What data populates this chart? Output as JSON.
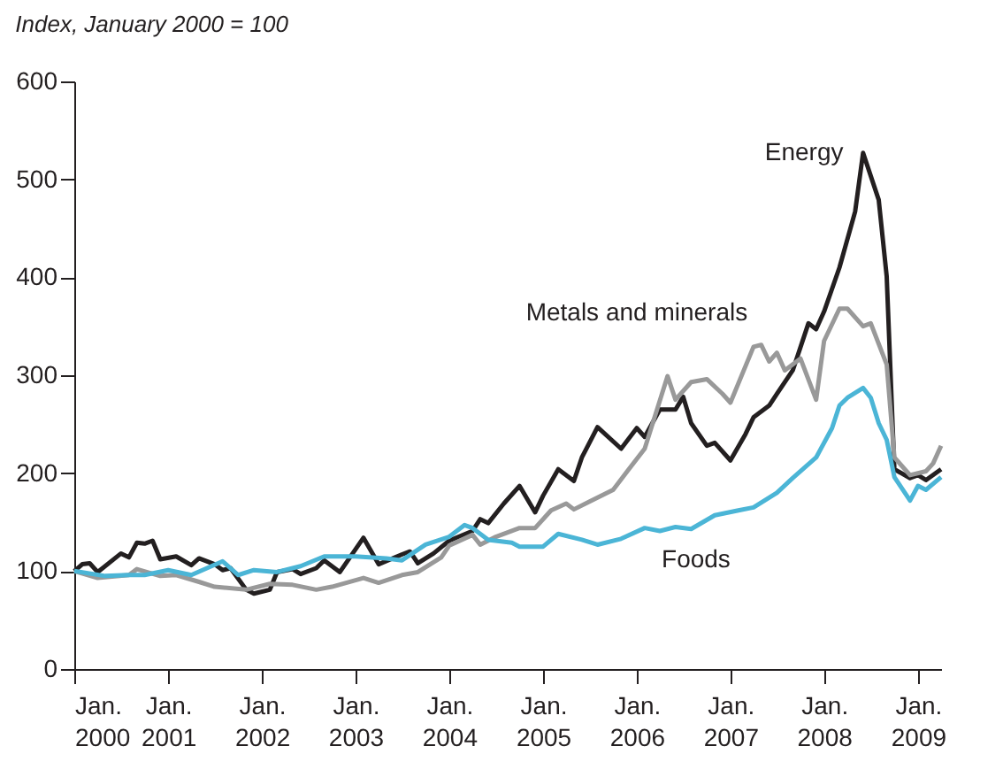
{
  "chart_data": {
    "type": "line",
    "ylabel": "Index, January 2000 = 100",
    "xlim": [
      "2000-01",
      "2009-04"
    ],
    "xticks": [
      {
        "value": "2000-01",
        "label": "Jan. 2000"
      },
      {
        "value": "2001-01",
        "label": "Jan. 2001"
      },
      {
        "value": "2002-01",
        "label": "Jan. 2002"
      },
      {
        "value": "2003-01",
        "label": "Jan. 2003"
      },
      {
        "value": "2004-01",
        "label": "Jan. 2004"
      },
      {
        "value": "2005-01",
        "label": "Jan. 2005"
      },
      {
        "value": "2006-01",
        "label": "Jan. 2006"
      },
      {
        "value": "2007-01",
        "label": "Jan. 2007"
      },
      {
        "value": "2008-01",
        "label": "Jan. 2008"
      },
      {
        "value": "2009-01",
        "label": "Jan. 2009"
      }
    ],
    "ylim": [
      0,
      600
    ],
    "yticks": [
      0,
      100,
      200,
      300,
      400,
      500,
      600
    ],
    "grid": false,
    "marker": "none",
    "line_style": "solid",
    "series": [
      {
        "name": "Energy",
        "color": "#231f20",
        "x": [
          "2000-01",
          "2000-02",
          "2000-03",
          "2000-04",
          "2000-07",
          "2000-08",
          "2000-09",
          "2000-10",
          "2000-11",
          "2000-12",
          "2001-02",
          "2001-04",
          "2001-05",
          "2001-07",
          "2001-08",
          "2001-09",
          "2001-11",
          "2001-12",
          "2002-02",
          "2002-03",
          "2002-05",
          "2002-06",
          "2002-08",
          "2002-09",
          "2002-11",
          "2003-02",
          "2003-04",
          "2003-07",
          "2003-08",
          "2003-09",
          "2003-11",
          "2004-01",
          "2004-04",
          "2004-05",
          "2004-06",
          "2004-08",
          "2004-10",
          "2004-12",
          "2005-01",
          "2005-03",
          "2005-05",
          "2005-06",
          "2005-08",
          "2005-11",
          "2006-01",
          "2006-02",
          "2006-04",
          "2006-06",
          "2006-07",
          "2006-08",
          "2006-10",
          "2006-11",
          "2007-01",
          "2007-03",
          "2007-04",
          "2007-06",
          "2007-07",
          "2007-09",
          "2007-11",
          "2007-12",
          "2008-01",
          "2008-03",
          "2008-05",
          "2008-06",
          "2008-08",
          "2008-09",
          "2008-10",
          "2008-12",
          "2009-01",
          "2009-02",
          "2009-04"
        ],
        "values": [
          100,
          107,
          108,
          99,
          118,
          114,
          129,
          128,
          131,
          112,
          115,
          106,
          113,
          107,
          101,
          103,
          81,
          77,
          81,
          99,
          102,
          97,
          103,
          111,
          99,
          134,
          107,
          117,
          120,
          108,
          118,
          131,
          141,
          153,
          149,
          169,
          187,
          160,
          177,
          204,
          192,
          216,
          247,
          225,
          246,
          237,
          265,
          265,
          278,
          251,
          228,
          231,
          213,
          240,
          257,
          269,
          281,
          305,
          353,
          347,
          365,
          410,
          467,
          527,
          479,
          401,
          204,
          195,
          198,
          193,
          204
        ]
      },
      {
        "name": "Metals and minerals",
        "color": "#999999",
        "x": [
          "2000-01",
          "2000-04",
          "2000-08",
          "2000-09",
          "2000-12",
          "2001-02",
          "2001-05",
          "2001-07",
          "2001-11",
          "2002-02",
          "2002-05",
          "2002-08",
          "2002-10",
          "2003-02",
          "2003-04",
          "2003-07",
          "2003-09",
          "2003-12",
          "2004-01",
          "2004-04",
          "2004-05",
          "2004-07",
          "2004-10",
          "2004-12",
          "2005-02",
          "2005-04",
          "2005-05",
          "2005-07",
          "2005-10",
          "2005-12",
          "2006-02",
          "2006-05",
          "2006-06",
          "2006-08",
          "2006-10",
          "2006-12",
          "2007-01",
          "2007-04",
          "2007-05",
          "2007-06",
          "2007-07",
          "2007-08",
          "2007-10",
          "2007-12",
          "2008-01",
          "2008-03",
          "2008-04",
          "2008-06",
          "2008-07",
          "2008-09",
          "2008-10",
          "2008-12",
          "2009-02",
          "2009-03",
          "2009-04"
        ],
        "values": [
          100,
          93,
          96,
          102,
          95,
          96,
          89,
          84,
          81,
          87,
          86,
          81,
          84,
          93,
          88,
          96,
          99,
          114,
          126,
          137,
          127,
          135,
          144,
          144,
          162,
          169,
          163,
          171,
          183,
          204,
          225,
          299,
          275,
          293,
          296,
          281,
          272,
          329,
          331,
          314,
          323,
          305,
          317,
          275,
          335,
          368,
          368,
          350,
          353,
          311,
          216,
          198,
          202,
          210,
          228
        ]
      },
      {
        "name": "Foods",
        "color": "#4bb5d6",
        "x": [
          "2000-01",
          "2000-05",
          "2000-08",
          "2000-10",
          "2001-01",
          "2001-04",
          "2001-08",
          "2001-10",
          "2001-12",
          "2002-03",
          "2002-06",
          "2002-09",
          "2003-01",
          "2003-05",
          "2003-07",
          "2003-10",
          "2004-01",
          "2004-03",
          "2004-04",
          "2004-06",
          "2004-09",
          "2004-10",
          "2005-01",
          "2005-03",
          "2005-06",
          "2005-08",
          "2005-11",
          "2006-02",
          "2006-04",
          "2006-06",
          "2006-08",
          "2006-11",
          "2007-02",
          "2007-04",
          "2007-07",
          "2007-09",
          "2007-12",
          "2008-02",
          "2008-03",
          "2008-04",
          "2008-06",
          "2008-07",
          "2008-08",
          "2008-09",
          "2008-10",
          "2008-12",
          "2009-01",
          "2009-02",
          "2009-04"
        ],
        "values": [
          100,
          95,
          96,
          96,
          101,
          96,
          110,
          96,
          101,
          99,
          105,
          115,
          115,
          113,
          111,
          127,
          135,
          147,
          144,
          132,
          129,
          125,
          125,
          138,
          132,
          127,
          133,
          144,
          141,
          145,
          143,
          157,
          162,
          165,
          180,
          195,
          216,
          246,
          269,
          277,
          287,
          277,
          251,
          234,
          196,
          172,
          187,
          183,
          196
        ]
      }
    ]
  }
}
